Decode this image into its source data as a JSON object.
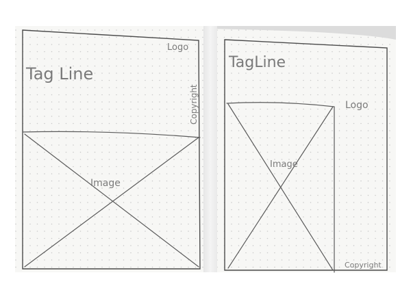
{
  "wireframes": [
    {
      "logo": "Logo",
      "tagline": "Tag Line",
      "copyright": "Copyright",
      "image": "Image"
    },
    {
      "logo": "Logo",
      "tagline": "TagLine",
      "copyright": "Copyright",
      "image": "Image"
    }
  ],
  "colors": {
    "paper": "#f7f7f5",
    "dots": "#c9c9c9",
    "ink": "#5a5a5a"
  }
}
